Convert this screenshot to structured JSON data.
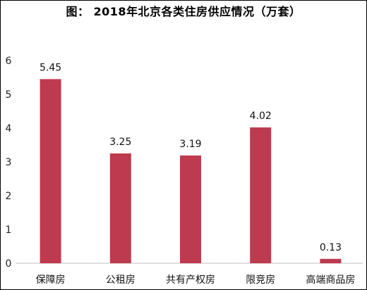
{
  "chart_data": {
    "type": "bar",
    "title": "图： 2018年北京各类住房供应情况（万套）",
    "categories": [
      "保障房",
      "公租房",
      "共有产权房",
      "限竞房",
      "高端商品房"
    ],
    "values": [
      5.45,
      3.25,
      3.19,
      4.02,
      0.13
    ],
    "value_labels": [
      "5.45",
      "3.25",
      "3.19",
      "4.02",
      "0.13"
    ],
    "yticks": [
      "0",
      "1",
      "2",
      "3",
      "4",
      "5",
      "6"
    ],
    "ylim": [
      0,
      6
    ],
    "grid": false,
    "legend": "none",
    "bar_color": "#BE3A4E"
  }
}
